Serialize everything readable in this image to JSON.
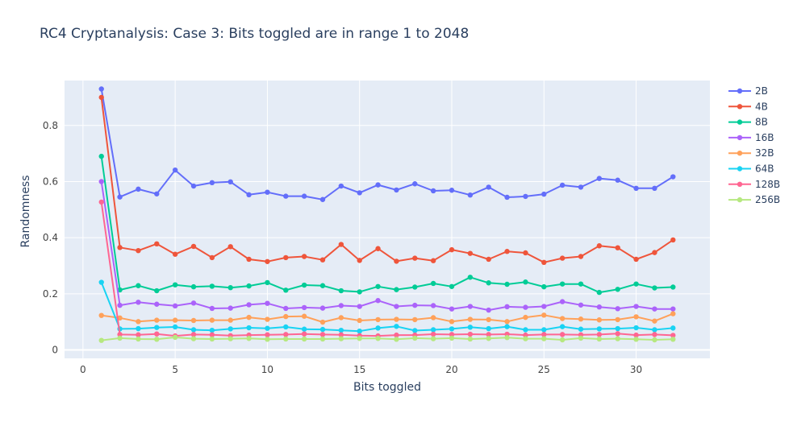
{
  "chart_data": {
    "type": "line",
    "title": "RC4 Cryptanalysis: Case 3: Bits toggled are in range 1 to 2048",
    "xlabel": "Bits toggled",
    "ylabel": "Randomness",
    "xlim": [
      -1,
      34
    ],
    "ylim": [
      -0.03,
      0.96
    ],
    "xticks": [
      0,
      5,
      10,
      15,
      20,
      25,
      30
    ],
    "yticks": [
      0,
      0.2,
      0.4,
      0.6,
      0.8
    ],
    "xtick_labels": [
      "0",
      "5",
      "10",
      "15",
      "20",
      "25",
      "30"
    ],
    "ytick_labels": [
      "0",
      "0.2",
      "0.4",
      "0.6",
      "0.8"
    ],
    "grid": true,
    "legend_position": "right",
    "x": [
      1,
      2,
      3,
      4,
      5,
      6,
      7,
      8,
      9,
      10,
      11,
      12,
      13,
      14,
      15,
      16,
      17,
      18,
      19,
      20,
      21,
      22,
      23,
      24,
      25,
      26,
      27,
      28,
      29,
      30,
      31,
      32
    ],
    "series": [
      {
        "name": "2B",
        "color": "#636efa",
        "values": [
          0.93,
          0.545,
          0.573,
          0.556,
          0.641,
          0.584,
          0.596,
          0.599,
          0.553,
          0.562,
          0.548,
          0.548,
          0.536,
          0.584,
          0.56,
          0.588,
          0.57,
          0.592,
          0.567,
          0.569,
          0.552,
          0.58,
          0.544,
          0.547,
          0.555,
          0.587,
          0.58,
          0.611,
          0.605,
          0.576,
          0.576,
          0.617
        ]
      },
      {
        "name": "4B",
        "color": "#ef553b",
        "values": [
          0.9,
          0.365,
          0.354,
          0.378,
          0.341,
          0.369,
          0.329,
          0.368,
          0.323,
          0.315,
          0.329,
          0.333,
          0.321,
          0.376,
          0.319,
          0.361,
          0.316,
          0.327,
          0.318,
          0.357,
          0.344,
          0.323,
          0.351,
          0.346,
          0.312,
          0.327,
          0.333,
          0.371,
          0.364,
          0.323,
          0.347,
          0.392
        ]
      },
      {
        "name": "8B",
        "color": "#00cc96",
        "values": [
          0.69,
          0.214,
          0.229,
          0.211,
          0.232,
          0.225,
          0.227,
          0.222,
          0.228,
          0.24,
          0.213,
          0.231,
          0.229,
          0.211,
          0.207,
          0.226,
          0.215,
          0.224,
          0.237,
          0.226,
          0.259,
          0.239,
          0.234,
          0.242,
          0.225,
          0.235,
          0.235,
          0.205,
          0.216,
          0.235,
          0.221,
          0.224
        ]
      },
      {
        "name": "16B",
        "color": "#ab63fa",
        "values": [
          0.6,
          0.159,
          0.17,
          0.163,
          0.157,
          0.167,
          0.148,
          0.149,
          0.161,
          0.166,
          0.148,
          0.151,
          0.149,
          0.158,
          0.155,
          0.176,
          0.155,
          0.159,
          0.158,
          0.146,
          0.155,
          0.142,
          0.154,
          0.152,
          0.155,
          0.172,
          0.16,
          0.153,
          0.147,
          0.155,
          0.146,
          0.146
        ]
      },
      {
        "name": "32B",
        "color": "#ffa15a",
        "values": [
          0.123,
          0.114,
          0.101,
          0.106,
          0.106,
          0.105,
          0.106,
          0.106,
          0.116,
          0.109,
          0.119,
          0.12,
          0.099,
          0.115,
          0.105,
          0.108,
          0.109,
          0.108,
          0.115,
          0.101,
          0.109,
          0.108,
          0.101,
          0.116,
          0.124,
          0.112,
          0.11,
          0.107,
          0.108,
          0.118,
          0.103,
          0.129
        ]
      },
      {
        "name": "64B",
        "color": "#19d3f3",
        "values": [
          0.241,
          0.075,
          0.076,
          0.08,
          0.082,
          0.072,
          0.07,
          0.075,
          0.079,
          0.077,
          0.082,
          0.074,
          0.073,
          0.07,
          0.067,
          0.078,
          0.084,
          0.069,
          0.072,
          0.075,
          0.081,
          0.076,
          0.083,
          0.072,
          0.072,
          0.083,
          0.074,
          0.075,
          0.076,
          0.079,
          0.072,
          0.078
        ]
      },
      {
        "name": "128B",
        "color": "#ff6692",
        "values": [
          0.527,
          0.055,
          0.054,
          0.057,
          0.05,
          0.055,
          0.054,
          0.051,
          0.053,
          0.054,
          0.055,
          0.057,
          0.055,
          0.054,
          0.051,
          0.05,
          0.053,
          0.053,
          0.056,
          0.055,
          0.056,
          0.055,
          0.056,
          0.053,
          0.055,
          0.055,
          0.054,
          0.055,
          0.058,
          0.053,
          0.055,
          0.052
        ]
      },
      {
        "name": "256B",
        "color": "#b6e880",
        "values": [
          0.034,
          0.042,
          0.039,
          0.038,
          0.045,
          0.04,
          0.039,
          0.04,
          0.041,
          0.038,
          0.039,
          0.039,
          0.039,
          0.04,
          0.041,
          0.041,
          0.038,
          0.042,
          0.04,
          0.042,
          0.039,
          0.041,
          0.044,
          0.04,
          0.04,
          0.036,
          0.042,
          0.039,
          0.04,
          0.038,
          0.036,
          0.038
        ]
      }
    ]
  },
  "colors": {
    "plot_background": "#e5ecf6",
    "grid": "#ffffff",
    "text": "#2a3f5f",
    "tick_text": "#444444"
  }
}
